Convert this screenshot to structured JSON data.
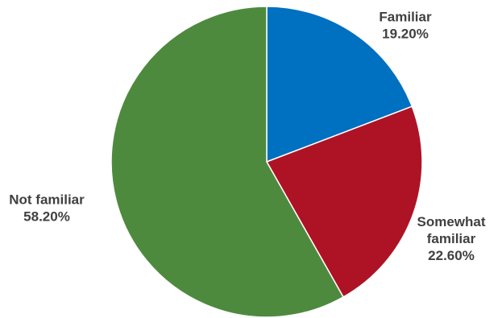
{
  "chart_data": {
    "type": "pie",
    "title": "",
    "start_angle_deg": 0,
    "direction": "clockwise",
    "legend": "none",
    "slices": [
      {
        "label_lines": [
          "Familiar"
        ],
        "value": 19.2,
        "value_label": "19.20%",
        "color": "#0070c0"
      },
      {
        "label_lines": [
          "Somewhat",
          "familiar"
        ],
        "value": 22.6,
        "value_label": "22.60%",
        "color": "#ae1325"
      },
      {
        "label_lines": [
          "Not familiar"
        ],
        "value": 58.2,
        "value_label": "58.20%",
        "color": "#4e8a3e"
      }
    ]
  }
}
